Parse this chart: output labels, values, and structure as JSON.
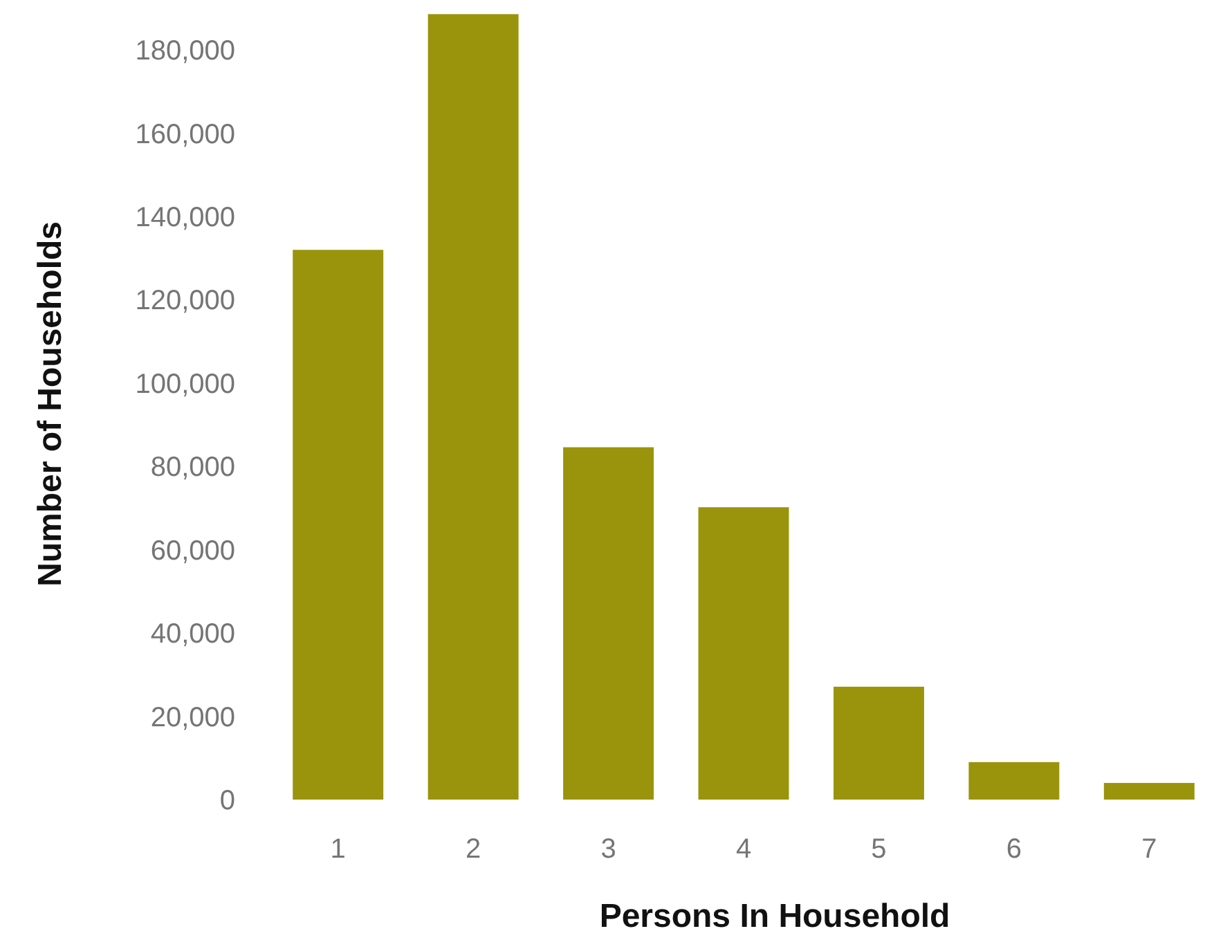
{
  "chart_data": {
    "type": "bar",
    "xlabel": "Persons In Household",
    "ylabel": "Number of Households",
    "categories": [
      "1",
      "2",
      "3",
      "4",
      "5",
      "6",
      "7"
    ],
    "values": [
      132000,
      188600,
      84600,
      70200,
      27100,
      9000,
      4000
    ],
    "color": "#9a940c",
    "ylim": [
      0,
      190000
    ],
    "yticks": [
      {
        "value": 0,
        "label": "0"
      },
      {
        "value": 20000,
        "label": "20,000"
      },
      {
        "value": 40000,
        "label": "40,000"
      },
      {
        "value": 60000,
        "label": "60,000"
      },
      {
        "value": 80000,
        "label": "80,000"
      },
      {
        "value": 100000,
        "label": "100,000"
      },
      {
        "value": 120000,
        "label": "120,000"
      },
      {
        "value": 140000,
        "label": "140,000"
      },
      {
        "value": 160000,
        "label": "160,000"
      },
      {
        "value": 180000,
        "label": "180,000"
      }
    ],
    "grid": false
  }
}
